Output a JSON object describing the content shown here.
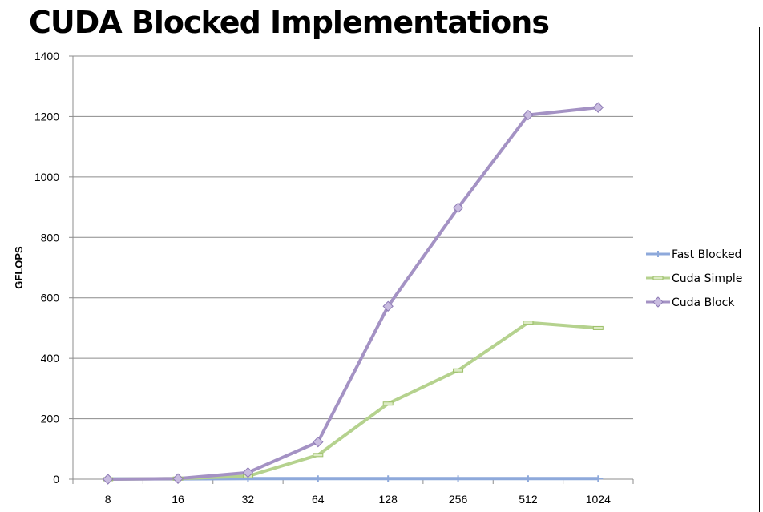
{
  "title": "CUDA Blocked Implementations",
  "chart_data": {
    "type": "line",
    "title": "CUDA Blocked Implementations",
    "xlabel": "",
    "ylabel": "GFLOPS",
    "categories": [
      "8",
      "16",
      "32",
      "64",
      "128",
      "256",
      "512",
      "1024"
    ],
    "ylim": [
      0,
      1400
    ],
    "yticks": [
      0,
      200,
      400,
      600,
      800,
      1000,
      1200,
      1400
    ],
    "grid": true,
    "legend_position": "right",
    "series": [
      {
        "name": "Fast Blocked",
        "color": "#8EA9DB",
        "marker": "plus",
        "values": [
          1,
          1,
          2,
          2,
          2,
          2,
          2,
          2
        ]
      },
      {
        "name": "Cuda Simple",
        "color": "#B5D28E",
        "marker": "dash",
        "values": [
          0,
          2,
          10,
          80,
          250,
          360,
          518,
          500
        ]
      },
      {
        "name": "Cuda Block",
        "color": "#A492C4",
        "marker": "diamond",
        "values": [
          0,
          2,
          22,
          123,
          572,
          898,
          1205,
          1230
        ]
      }
    ]
  }
}
